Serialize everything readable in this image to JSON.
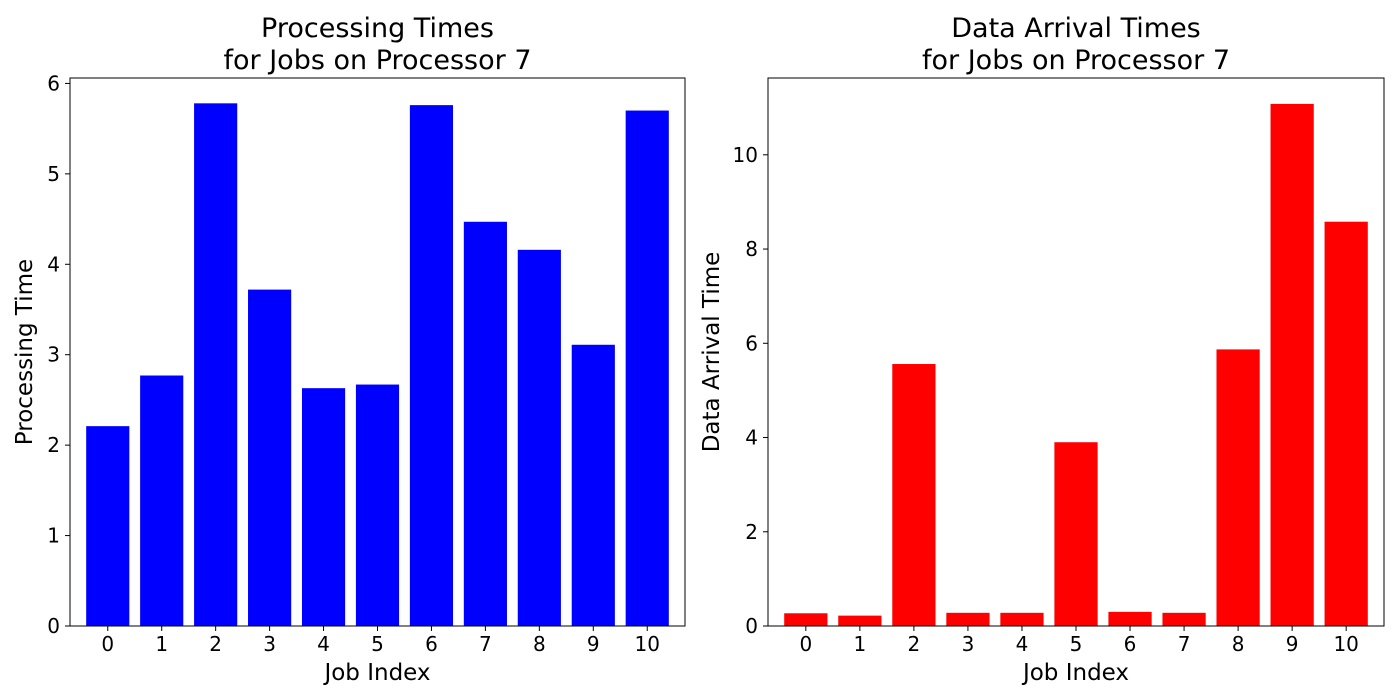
{
  "chart_data": [
    {
      "type": "bar",
      "title_lines": [
        "Processing Times",
        "for Jobs on Processor 7"
      ],
      "xlabel": "Job Index",
      "ylabel": "Processing Time",
      "categories": [
        "0",
        "1",
        "2",
        "3",
        "4",
        "5",
        "6",
        "7",
        "8",
        "9",
        "10"
      ],
      "values": [
        2.21,
        2.77,
        5.78,
        3.72,
        2.63,
        2.67,
        5.76,
        4.47,
        4.16,
        3.11,
        5.7
      ],
      "ylim": [
        0,
        6.06
      ],
      "yticks": [
        0,
        1,
        2,
        3,
        4,
        5,
        6
      ],
      "ytick_labels": [
        "0",
        "1",
        "2",
        "3",
        "4",
        "5",
        "6"
      ],
      "color": "#0000ff",
      "grid": false
    },
    {
      "type": "bar",
      "title_lines": [
        "Data Arrival Times",
        "for Jobs on Processor 7"
      ],
      "xlabel": "Job Index",
      "ylabel": "Data Arrival Time",
      "categories": [
        "0",
        "1",
        "2",
        "3",
        "4",
        "5",
        "6",
        "7",
        "8",
        "9",
        "10"
      ],
      "values": [
        0.27,
        0.22,
        5.56,
        0.28,
        0.28,
        3.9,
        0.3,
        0.28,
        5.87,
        11.08,
        8.58
      ],
      "ylim": [
        0,
        11.63
      ],
      "yticks": [
        0,
        2,
        4,
        6,
        8,
        10
      ],
      "ytick_labels": [
        "0",
        "2",
        "4",
        "6",
        "8",
        "10"
      ],
      "color": "#ff0000",
      "grid": false
    }
  ]
}
